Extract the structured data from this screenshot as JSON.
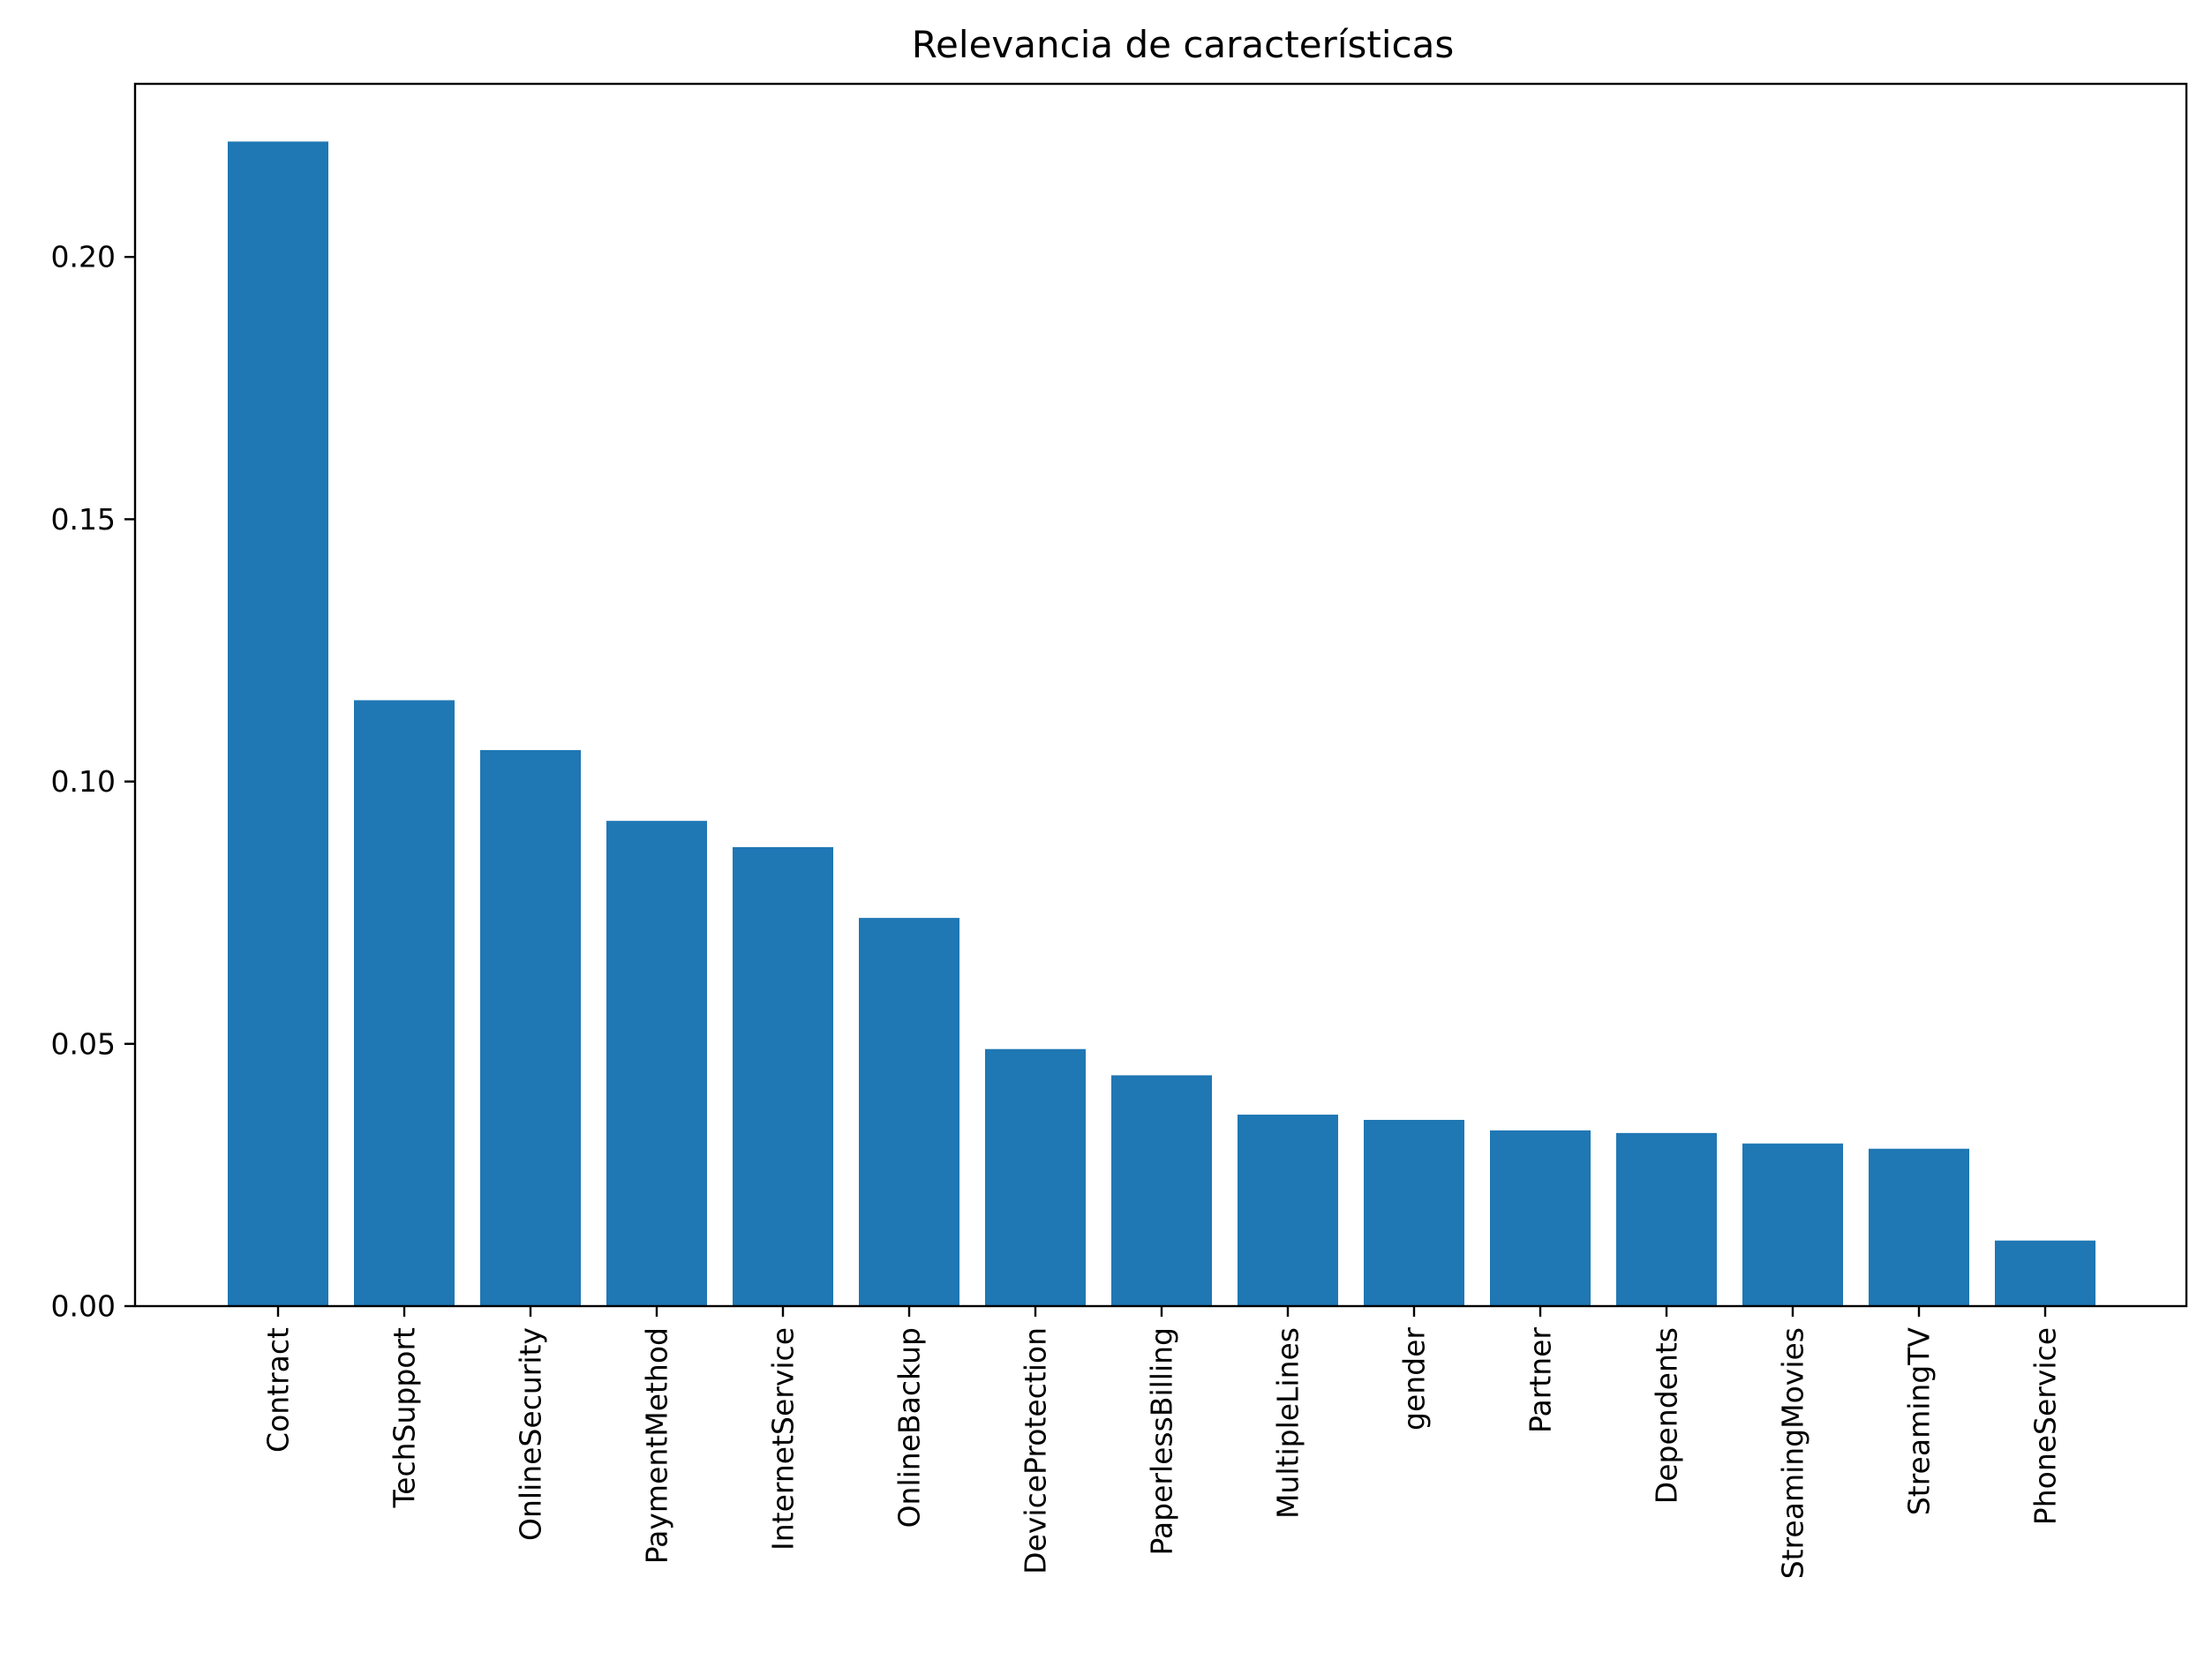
{
  "chart_data": {
    "type": "bar",
    "title": "Relevancia de características",
    "xlabel": "",
    "ylabel": "",
    "categories": [
      "Contract",
      "TechSupport",
      "OnlineSecurity",
      "PaymentMethod",
      "InternetService",
      "OnlineBackup",
      "DeviceProtection",
      "PaperlessBilling",
      "MultipleLines",
      "gender",
      "Partner",
      "Dependents",
      "StreamingMovies",
      "StreamingTV",
      "PhoneService"
    ],
    "values": [
      0.222,
      0.1155,
      0.106,
      0.0925,
      0.0875,
      0.074,
      0.049,
      0.044,
      0.0365,
      0.0355,
      0.0335,
      0.033,
      0.031,
      0.03,
      0.0125
    ],
    "ylim": [
      0,
      0.233
    ],
    "yticks": [
      "0.00",
      "0.05",
      "0.10",
      "0.15",
      "0.20"
    ],
    "ytick_values": [
      0,
      0.05,
      0.1,
      0.15,
      0.2
    ],
    "grid": false,
    "bar_color": "#1f77b4"
  }
}
